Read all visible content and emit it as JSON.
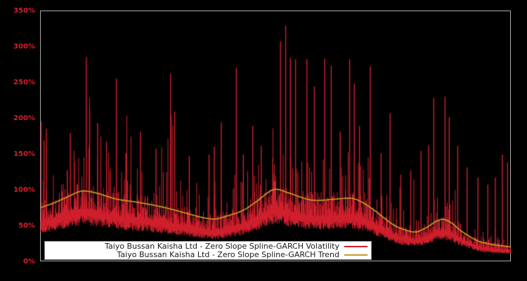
{
  "page": {
    "background": "#000000"
  },
  "chart_data": {
    "type": "line",
    "title": "",
    "description": "Dense daily volatility series (red spikes) with smooth Spline-GARCH trend curve (gold) on a black background; legend boxed at bottom inside plot.",
    "y_axis": {
      "min": 0,
      "max": 350,
      "tick_step": 50,
      "unit": "%",
      "tick_labels": [
        "0%",
        "50%",
        "100%",
        "150%",
        "200%",
        "250%",
        "300%",
        "350%"
      ],
      "label_color": "#d1202b"
    },
    "x_axis": {
      "tick_labels": [],
      "labels_visible": false
    },
    "grid": false,
    "plot": {
      "background": "#000000",
      "border_color": "#ababab"
    },
    "legend": {
      "position": "bottom-inside",
      "background": "#ffffff",
      "border_color": "#8a8a8a",
      "text_color": "#1a1a1a"
    },
    "series": [
      {
        "name": "Taiyo Bussan Kaisha Ltd - Zero Slope Spline-GARCH Volatility",
        "color": "#cf1f2d",
        "kind": "volatility"
      },
      {
        "name": "Taiyo Bussan Kaisha Ltd - Zero Slope Spline-GARCH Trend",
        "color": "#c79c27",
        "kind": "trend"
      }
    ],
    "trend_points_pct": [
      [
        0.0,
        76
      ],
      [
        0.03,
        83
      ],
      [
        0.06,
        92
      ],
      [
        0.088,
        99
      ],
      [
        0.12,
        96
      ],
      [
        0.16,
        88
      ],
      [
        0.2,
        84
      ],
      [
        0.235,
        80
      ],
      [
        0.27,
        75
      ],
      [
        0.31,
        68
      ],
      [
        0.345,
        62
      ],
      [
        0.37,
        60
      ],
      [
        0.39,
        63
      ],
      [
        0.43,
        72
      ],
      [
        0.46,
        85
      ],
      [
        0.495,
        101
      ],
      [
        0.525,
        97
      ],
      [
        0.565,
        88
      ],
      [
        0.59,
        86
      ],
      [
        0.63,
        88
      ],
      [
        0.66,
        89
      ],
      [
        0.682,
        84
      ],
      [
        0.71,
        72
      ],
      [
        0.75,
        52
      ],
      [
        0.775,
        45
      ],
      [
        0.798,
        42
      ],
      [
        0.82,
        48
      ],
      [
        0.842,
        57
      ],
      [
        0.857,
        59.5
      ],
      [
        0.875,
        54
      ],
      [
        0.893,
        44
      ],
      [
        0.928,
        30
      ],
      [
        0.957,
        25
      ],
      [
        1.0,
        21
      ]
    ],
    "volatility_spikes_pct": [
      [
        0.001,
        196
      ],
      [
        0.007,
        170
      ],
      [
        0.012,
        186
      ],
      [
        0.063,
        180
      ],
      [
        0.097,
        286
      ],
      [
        0.104,
        215
      ],
      [
        0.121,
        194
      ],
      [
        0.14,
        168
      ],
      [
        0.161,
        256
      ],
      [
        0.181,
        152
      ],
      [
        0.212,
        182
      ],
      [
        0.245,
        158
      ],
      [
        0.276,
        263
      ],
      [
        0.285,
        210
      ],
      [
        0.316,
        148
      ],
      [
        0.358,
        150
      ],
      [
        0.369,
        161
      ],
      [
        0.384,
        195
      ],
      [
        0.416,
        271
      ],
      [
        0.431,
        150
      ],
      [
        0.451,
        190
      ],
      [
        0.469,
        162
      ],
      [
        0.51,
        308
      ],
      [
        0.521,
        330
      ],
      [
        0.531,
        285
      ],
      [
        0.542,
        283
      ],
      [
        0.566,
        283
      ],
      [
        0.582,
        245
      ],
      [
        0.604,
        284
      ],
      [
        0.618,
        274
      ],
      [
        0.637,
        182
      ],
      [
        0.657,
        283
      ],
      [
        0.667,
        249
      ],
      [
        0.678,
        190
      ],
      [
        0.701,
        273
      ],
      [
        0.724,
        152
      ],
      [
        0.743,
        208
      ],
      [
        0.766,
        122
      ],
      [
        0.787,
        128
      ],
      [
        0.809,
        155
      ],
      [
        0.825,
        163
      ],
      [
        0.836,
        229
      ],
      [
        0.86,
        231
      ],
      [
        0.869,
        202
      ],
      [
        0.887,
        162
      ],
      [
        0.907,
        132
      ],
      [
        0.93,
        118
      ],
      [
        0.951,
        108
      ],
      [
        0.967,
        118
      ],
      [
        0.982,
        150
      ],
      [
        0.993,
        139
      ]
    ],
    "volatility_band": {
      "bottom_factor_range": [
        0.52,
        0.66
      ],
      "typical_top_factor_range": [
        0.74,
        1.14
      ],
      "note": "y values are percent volatility; x is fraction of the time axis (no date labels visible)"
    }
  }
}
